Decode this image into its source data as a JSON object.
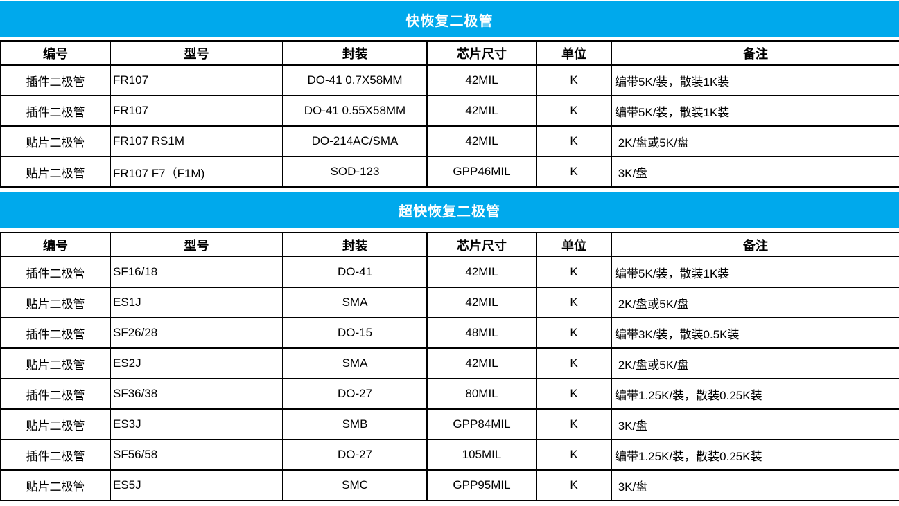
{
  "colors": {
    "banner_bg": "#00A9EC",
    "banner_text": "#FFFFFF",
    "border": "#000000",
    "text": "#000000"
  },
  "sections": [
    {
      "title": "快恢复二极管",
      "columns": [
        "编号",
        "型号",
        "封装",
        "芯片尺寸",
        "单位",
        "备注"
      ],
      "rows": [
        [
          "插件二极管",
          "FR107",
          "DO-41 0.7X58MM",
          "42MIL",
          "K",
          "编带5K/装，散装1K装"
        ],
        [
          "插件二极管",
          "FR107",
          "DO-41 0.55X58MM",
          "42MIL",
          "K",
          "编带5K/装，散装1K装"
        ],
        [
          "贴片二极管",
          "FR107 RS1M",
          "DO-214AC/SMA",
          "42MIL",
          "K",
          " 2K/盘或5K/盘"
        ],
        [
          "贴片二极管",
          "FR107 F7（F1M)",
          "SOD-123",
          "GPP46MIL",
          "K",
          " 3K/盘"
        ]
      ]
    },
    {
      "title": "超快恢复二极管",
      "columns": [
        "编号",
        "型号",
        "封装",
        "芯片尺寸",
        "单位",
        "备注"
      ],
      "rows": [
        [
          "插件二极管",
          "SF16/18",
          "DO-41",
          "42MIL",
          "K",
          "编带5K/装，散装1K装"
        ],
        [
          "贴片二极管",
          "ES1J",
          "SMA",
          "42MIL",
          "K",
          " 2K/盘或5K/盘"
        ],
        [
          "插件二极管",
          "SF26/28",
          "DO-15",
          "48MIL",
          "K",
          "编带3K/装，散装0.5K装"
        ],
        [
          "贴片二极管",
          "ES2J",
          "SMA",
          "42MIL",
          "K",
          " 2K/盘或5K/盘"
        ],
        [
          "插件二极管",
          "SF36/38",
          "DO-27",
          "80MIL",
          "K",
          "编带1.25K/装，散装0.25K装"
        ],
        [
          "贴片二极管",
          "ES3J",
          "SMB",
          "GPP84MIL",
          "K",
          " 3K/盘"
        ],
        [
          "插件二极管",
          "SF56/58",
          "DO-27",
          "105MIL",
          "K",
          "编带1.25K/装，散装0.25K装"
        ],
        [
          "贴片二极管",
          "ES5J",
          "SMC",
          "GPP95MIL",
          "K",
          " 3K/盘"
        ]
      ]
    }
  ]
}
